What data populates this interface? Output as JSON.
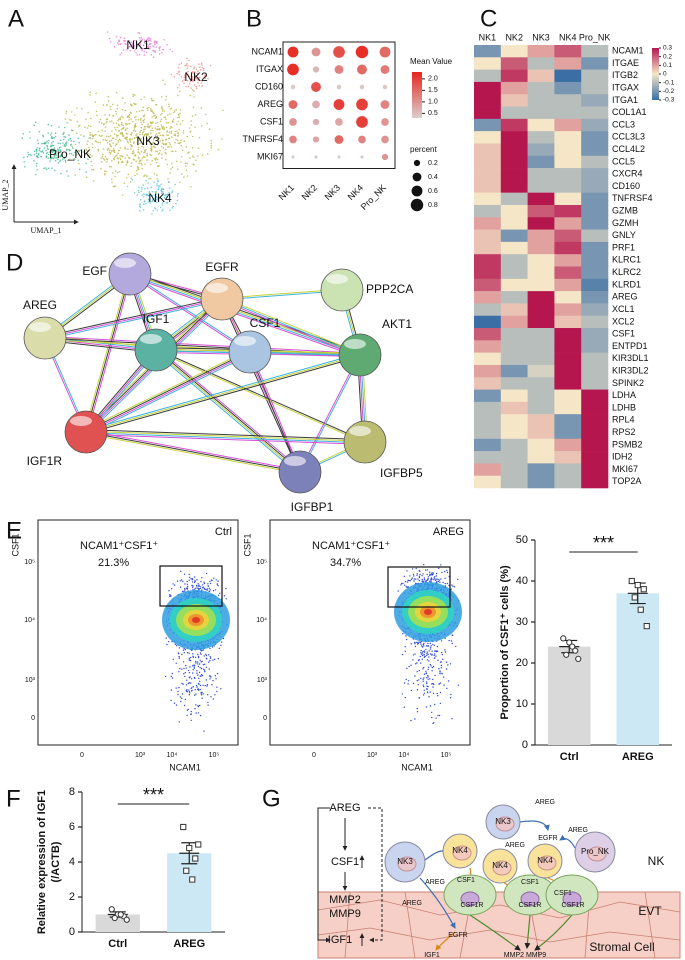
{
  "panel_labels": [
    "A",
    "B",
    "C",
    "D",
    "E",
    "F",
    "G"
  ],
  "umap": {
    "clusters": [
      "NK1",
      "NK2",
      "NK3",
      "NK4",
      "Pro_NK"
    ],
    "colors": [
      "#e37fd6",
      "#f08a8a",
      "#b8b844",
      "#55c4e4",
      "#42ba8e"
    ],
    "x_label": "UMAP_1",
    "y_label": "UMAP_2"
  },
  "network": {
    "nodes": [
      "EGF",
      "EGFR",
      "PPP2CA",
      "AREG",
      "IGF1",
      "CSF1",
      "AKT1",
      "IGFBP5",
      "IGF1R",
      "IGFBP1"
    ],
    "colors": [
      "#b3a9dc",
      "#f0c9a2",
      "#cbe2b3",
      "#dadca9",
      "#5cb2a2",
      "#a9c5e1",
      "#5eaa72",
      "#bbbb72",
      "#e05252",
      "#7d81ba"
    ]
  },
  "flow": {
    "y_label": "CSF1",
    "x_label": "NCAM1",
    "gate_label": "NCAM1⁺CSF1⁺",
    "tick_labels": [
      "0",
      "10³",
      "10⁴",
      "10⁵"
    ],
    "plots": [
      {
        "condition": "Ctrl",
        "percent": "21.3%"
      },
      {
        "condition": "AREG",
        "percent": "34.7%"
      }
    ]
  },
  "chart_data": [
    {
      "type": "dot",
      "x": [
        "NK1",
        "NK2",
        "NK3",
        "NK4",
        "Pro_NK"
      ],
      "y": [
        "NCAM1",
        "ITGAX",
        "CD160",
        "AREG",
        "CSF1",
        "TNFRSF4",
        "MKI67"
      ],
      "values": [
        [
          2.2,
          1.0,
          1.8,
          2.2,
          1.5
        ],
        [
          2.2,
          0.6,
          1.2,
          1.5,
          1.3
        ],
        [
          0.4,
          1.8,
          0.4,
          0.4,
          0.4
        ],
        [
          1.5,
          0.7,
          2.0,
          2.0,
          1.2
        ],
        [
          1.0,
          0.7,
          0.8,
          2.0,
          1.0
        ],
        [
          1.2,
          0.8,
          1.5,
          1.2,
          1.0
        ],
        [
          0.4,
          0.4,
          0.4,
          0.4,
          1.0
        ]
      ],
      "sizes": [
        [
          0.6,
          0.4,
          0.7,
          0.8,
          0.6
        ],
        [
          0.7,
          0.2,
          0.4,
          0.5,
          0.4
        ],
        [
          0.1,
          0.5,
          0.1,
          0.1,
          0.1
        ],
        [
          0.4,
          0.3,
          0.6,
          0.7,
          0.4
        ],
        [
          0.3,
          0.2,
          0.3,
          0.7,
          0.3
        ],
        [
          0.3,
          0.2,
          0.4,
          0.3,
          0.3
        ],
        [
          0.05,
          0.05,
          0.05,
          0.05,
          0.2
        ]
      ],
      "color_label": "Mean Value",
      "color_lim": [
        0.3,
        2.3
      ],
      "colormap": [
        "#d9cfcf",
        "#e8261e"
      ],
      "color_ticks": [
        {
          "value": 2.0,
          "label": "2.0"
        },
        {
          "value": 1.5,
          "label": "1.5"
        },
        {
          "value": 1.0,
          "label": "1.0"
        },
        {
          "value": 0.5,
          "label": "0.5"
        }
      ],
      "size_label": "percent",
      "size_ticks": [
        0.2,
        0.4,
        0.6,
        0.8
      ]
    },
    {
      "type": "heatmap",
      "columns": [
        "NK1",
        "NK2",
        "NK3",
        "NK4",
        "Pro_NK"
      ],
      "rows": [
        "NCAM1",
        "ITGAE",
        "ITGB2",
        "ITGAX",
        "ITGA1",
        "COL1A1",
        "CCL3",
        "CCL3L3",
        "CCL4L2",
        "CCL5",
        "CXCR4",
        "CD160",
        "TNFRSF4",
        "GZMB",
        "GZMH",
        "GNLY",
        "PRF1",
        "KLRC1",
        "KLRC2",
        "KLRD1",
        "AREG",
        "XCL1",
        "XCL2",
        "CSF1",
        "ENTPD1",
        "KIR3DL1",
        "KIR3DL2",
        "SPINK2",
        "LDHA",
        "LDHB",
        "RPL4",
        "RPS2",
        "PSMB2",
        "IDH2",
        "MKI67",
        "TOP2A"
      ],
      "values": [
        [
          -0.2,
          0.0,
          0.1,
          0.2,
          -0.1
        ],
        [
          0.0,
          0.2,
          -0.1,
          0.1,
          -0.2
        ],
        [
          -0.1,
          0.25,
          0.05,
          -0.3,
          -0.1
        ],
        [
          0.3,
          0.1,
          -0.1,
          -0.2,
          -0.1
        ],
        [
          0.3,
          0.05,
          -0.1,
          -0.1,
          -0.15
        ],
        [
          0.3,
          -0.1,
          -0.1,
          -0.1,
          -0.1
        ],
        [
          -0.2,
          0.25,
          0.0,
          0.1,
          -0.15
        ],
        [
          0.0,
          0.3,
          -0.1,
          0.0,
          -0.2
        ],
        [
          0.05,
          0.3,
          -0.15,
          0.0,
          -0.2
        ],
        [
          0.05,
          0.3,
          -0.2,
          0.0,
          -0.1
        ],
        [
          0.05,
          0.3,
          -0.1,
          -0.1,
          -0.15
        ],
        [
          0.05,
          0.3,
          -0.1,
          -0.1,
          -0.15
        ],
        [
          0.0,
          -0.1,
          0.3,
          0.0,
          -0.2
        ],
        [
          -0.1,
          0.0,
          0.2,
          0.25,
          -0.2
        ],
        [
          0.1,
          0.0,
          0.3,
          0.1,
          -0.2
        ],
        [
          0.05,
          -0.2,
          0.1,
          0.2,
          -0.1
        ],
        [
          0.05,
          0.0,
          0.1,
          0.25,
          -0.2
        ],
        [
          0.25,
          -0.1,
          0.0,
          0.1,
          -0.2
        ],
        [
          0.25,
          -0.1,
          0.0,
          0.2,
          -0.2
        ],
        [
          0.2,
          0.0,
          0.0,
          0.1,
          -0.25
        ],
        [
          0.1,
          -0.1,
          0.3,
          0.0,
          -0.2
        ],
        [
          -0.1,
          0.05,
          0.3,
          0.1,
          -0.15
        ],
        [
          -0.3,
          0.1,
          0.3,
          0.05,
          -0.1
        ],
        [
          0.2,
          -0.1,
          -0.1,
          0.3,
          -0.15
        ],
        [
          0.1,
          -0.1,
          -0.1,
          0.3,
          -0.15
        ],
        [
          0.0,
          -0.1,
          -0.1,
          0.3,
          -0.1
        ],
        [
          0.1,
          -0.2,
          -0.05,
          0.3,
          -0.1
        ],
        [
          0.05,
          -0.1,
          -0.1,
          0.3,
          -0.1
        ],
        [
          -0.2,
          0.0,
          -0.1,
          0.0,
          0.3
        ],
        [
          -0.1,
          0.05,
          -0.1,
          0.0,
          0.3
        ],
        [
          -0.1,
          0.0,
          0.05,
          -0.2,
          0.3
        ],
        [
          -0.1,
          0.0,
          0.05,
          -0.2,
          0.3
        ],
        [
          -0.2,
          -0.1,
          0.0,
          0.1,
          0.3
        ],
        [
          -0.1,
          -0.1,
          0.0,
          0.05,
          0.3
        ],
        [
          0.1,
          -0.1,
          -0.2,
          -0.1,
          0.3
        ],
        [
          0.0,
          -0.1,
          -0.2,
          -0.1,
          0.3
        ]
      ],
      "zlim": [
        -0.3,
        0.3
      ],
      "colormap": [
        "#3a6ea5",
        "#f5e6c8",
        "#b5164e"
      ],
      "zticks": [
        0.3,
        0.2,
        0.1,
        0,
        -0.1,
        -0.2,
        -0.3
      ]
    },
    {
      "type": "bar",
      "categories": [
        "Ctrl",
        "AREG"
      ],
      "values": [
        24,
        37
      ],
      "errors": [
        1.5,
        2.5
      ],
      "points": [
        [
          26,
          25,
          23,
          22,
          24,
          21
        ],
        [
          40,
          39,
          38,
          36,
          33,
          29
        ]
      ],
      "colors": [
        "#d9d9d9",
        "#cce8f4"
      ],
      "ylim": [
        0,
        50
      ],
      "yticks": [
        0,
        10,
        20,
        30,
        40,
        50
      ],
      "ylabel": [
        "Proportion of CSF1⁺ cells (%)"
      ],
      "annotation": "***"
    },
    {
      "type": "bar",
      "categories": [
        "Ctrl",
        "AREG"
      ],
      "values": [
        1.0,
        4.5
      ],
      "errors": [
        0.15,
        0.6
      ],
      "points": [
        [
          1.3,
          1.0,
          0.9,
          0.8,
          1.0,
          0.7
        ],
        [
          6.0,
          4.8,
          4.2,
          3.5,
          3.0,
          5.0
        ]
      ],
      "colors": [
        "#d9d9d9",
        "#cce8f4"
      ],
      "ylim": [
        0,
        8
      ],
      "yticks": [
        0,
        2,
        4,
        6,
        8
      ],
      "ylabel": [
        "Relative expression of IGF1",
        "(/ACTB)"
      ],
      "annotation": "***"
    }
  ],
  "diagram": {
    "pathway": [
      "AREG",
      "CSF1",
      "MMP2",
      "MMP9",
      "IGF1"
    ],
    "labels": [
      "NK3",
      "NK4",
      "NK3",
      "NK4",
      "NK4",
      "Pro_NK",
      "NK",
      "EVT",
      "Stromal Cell",
      "AREG",
      "EGFR",
      "AREG",
      "AREG",
      "AREG",
      "CSF1",
      "CSF1",
      "CSF1",
      "AREG",
      "CSF1R",
      "CSF1R",
      "CSF1R",
      "EGFR",
      "IGF1",
      "MMP2 MMP9"
    ]
  }
}
